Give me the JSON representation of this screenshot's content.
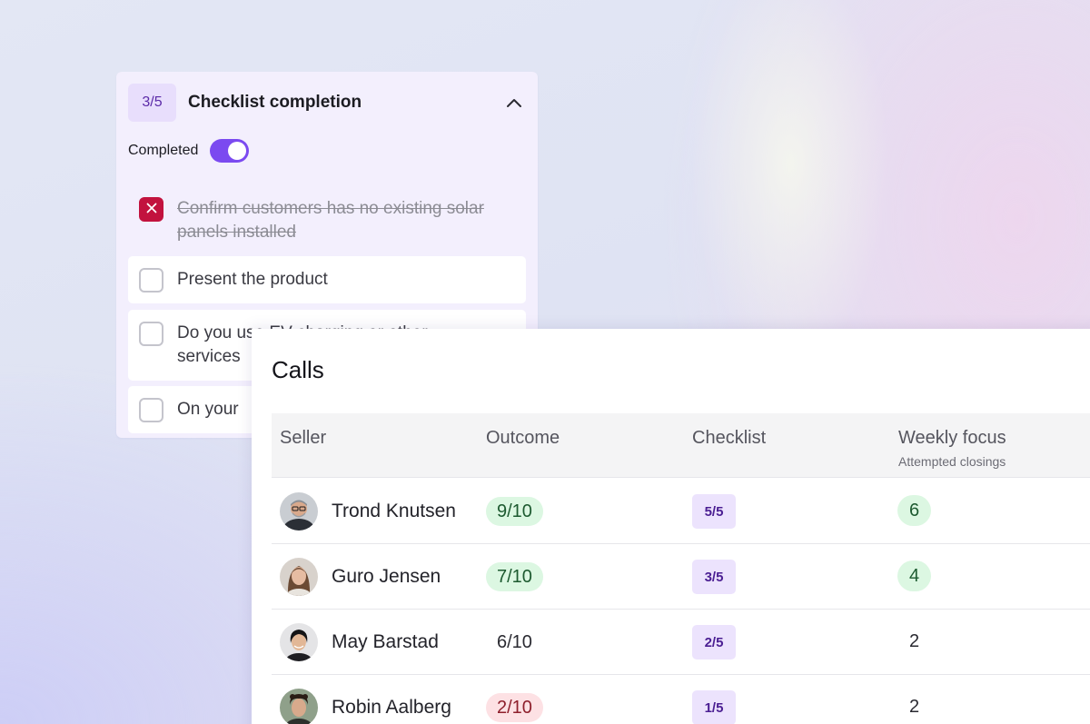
{
  "checklist": {
    "count": "3/5",
    "title": "Checklist completion",
    "toggle_label": "Completed",
    "items": [
      {
        "text": "Confirm customers has no existing solar panels installed",
        "state": "failed"
      },
      {
        "text": "Present the product",
        "state": "open"
      },
      {
        "text": "Do you use EV charging or other services",
        "state": "open"
      },
      {
        "text": "On your",
        "state": "open"
      }
    ]
  },
  "calls": {
    "title": "Calls",
    "columns": {
      "seller": "Seller",
      "outcome": "Outcome",
      "checklist": "Checklist",
      "weekly_focus": "Weekly focus",
      "weekly_focus_sub": "Attempted closings"
    },
    "rows": [
      {
        "name": "Trond Knutsen",
        "outcome": "9/10",
        "outcome_status": "good",
        "checklist": "5/5",
        "focus": "6",
        "focus_status": "good"
      },
      {
        "name": "Guro Jensen",
        "outcome": "7/10",
        "outcome_status": "good",
        "checklist": "3/5",
        "focus": "4",
        "focus_status": "good"
      },
      {
        "name": "May Barstad",
        "outcome": "6/10",
        "outcome_status": "neutral",
        "checklist": "2/5",
        "focus": "2",
        "focus_status": "neutral"
      },
      {
        "name": "Robin Aalberg",
        "outcome": "2/10",
        "outcome_status": "bad",
        "checklist": "1/5",
        "focus": "2",
        "focus_status": "neutral"
      }
    ]
  },
  "colors": {
    "accent": "#7b4af0",
    "checklist_badge": "#ece3fd",
    "good": "#dcf7e2",
    "bad": "#fde1e4",
    "failed_check": "#c2123e"
  }
}
